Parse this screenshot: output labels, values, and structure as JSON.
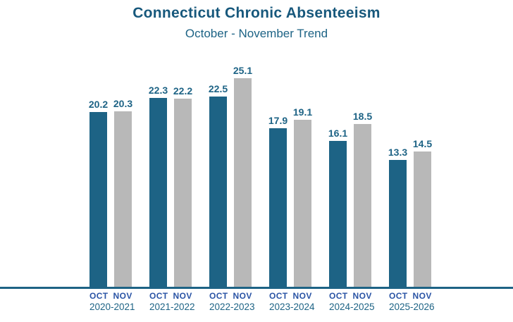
{
  "header": {
    "title": "Connecticut Chronic Absenteeism",
    "subtitle": "October - November Trend"
  },
  "chart_data": {
    "type": "bar",
    "title": "Connecticut Chronic Absenteeism",
    "subtitle": "October - November Trend",
    "categories": [
      "2020-2021",
      "2021-2022",
      "2022-2023",
      "2023-2024",
      "2024-2025",
      "2025-2026"
    ],
    "series": [
      {
        "name": "OCT",
        "values": [
          20.2,
          22.3,
          22.5,
          17.9,
          16.1,
          13.3
        ],
        "color": "#1d6385"
      },
      {
        "name": "NOV",
        "values": [
          20.3,
          22.2,
          25.1,
          19.1,
          18.5,
          14.5
        ],
        "color": "#b8b8b8"
      }
    ],
    "value_labels_shown": true,
    "xlabel": "",
    "ylabel": "",
    "ylim": [
      -5,
      30.4
    ],
    "grid": false,
    "legend_position": "none"
  },
  "colors": {
    "background": "#ffffff",
    "title": "#17587c",
    "subtitle": "#1d6385",
    "oct_bar": "#1d6385",
    "nov_bar": "#b8b8b8",
    "value_label": "#1d6385",
    "month_label": "#2a54a5",
    "year_label": "#1d6385",
    "axis_line": "#1d6385"
  }
}
